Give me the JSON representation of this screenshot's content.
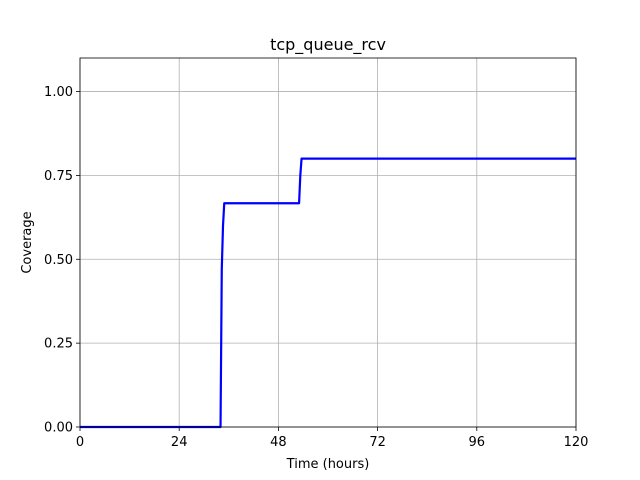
{
  "chart_data": {
    "type": "line",
    "title": "tcp_queue_rcv",
    "xlabel": "Time (hours)",
    "ylabel": "Coverage",
    "xlim": [
      0,
      120
    ],
    "ylim": [
      0,
      1.1
    ],
    "x_ticks": [
      0,
      24,
      48,
      72,
      96,
      120
    ],
    "x_tick_labels": [
      "0",
      "24",
      "48",
      "72",
      "96",
      "120"
    ],
    "y_ticks": [
      0,
      0.25,
      0.5,
      0.75,
      1.0
    ],
    "y_tick_labels": [
      "0.00",
      "0.25",
      "0.50",
      "0.75",
      "1.00"
    ],
    "grid": true,
    "series": [
      {
        "color": "#0000ff",
        "x": [
          0,
          34,
          34.3,
          34.6,
          34.9,
          53,
          53.3,
          53.6,
          120
        ],
        "y": [
          0,
          0,
          0.47,
          0.6,
          0.667,
          0.667,
          0.75,
          0.8,
          0.8
        ]
      }
    ]
  }
}
